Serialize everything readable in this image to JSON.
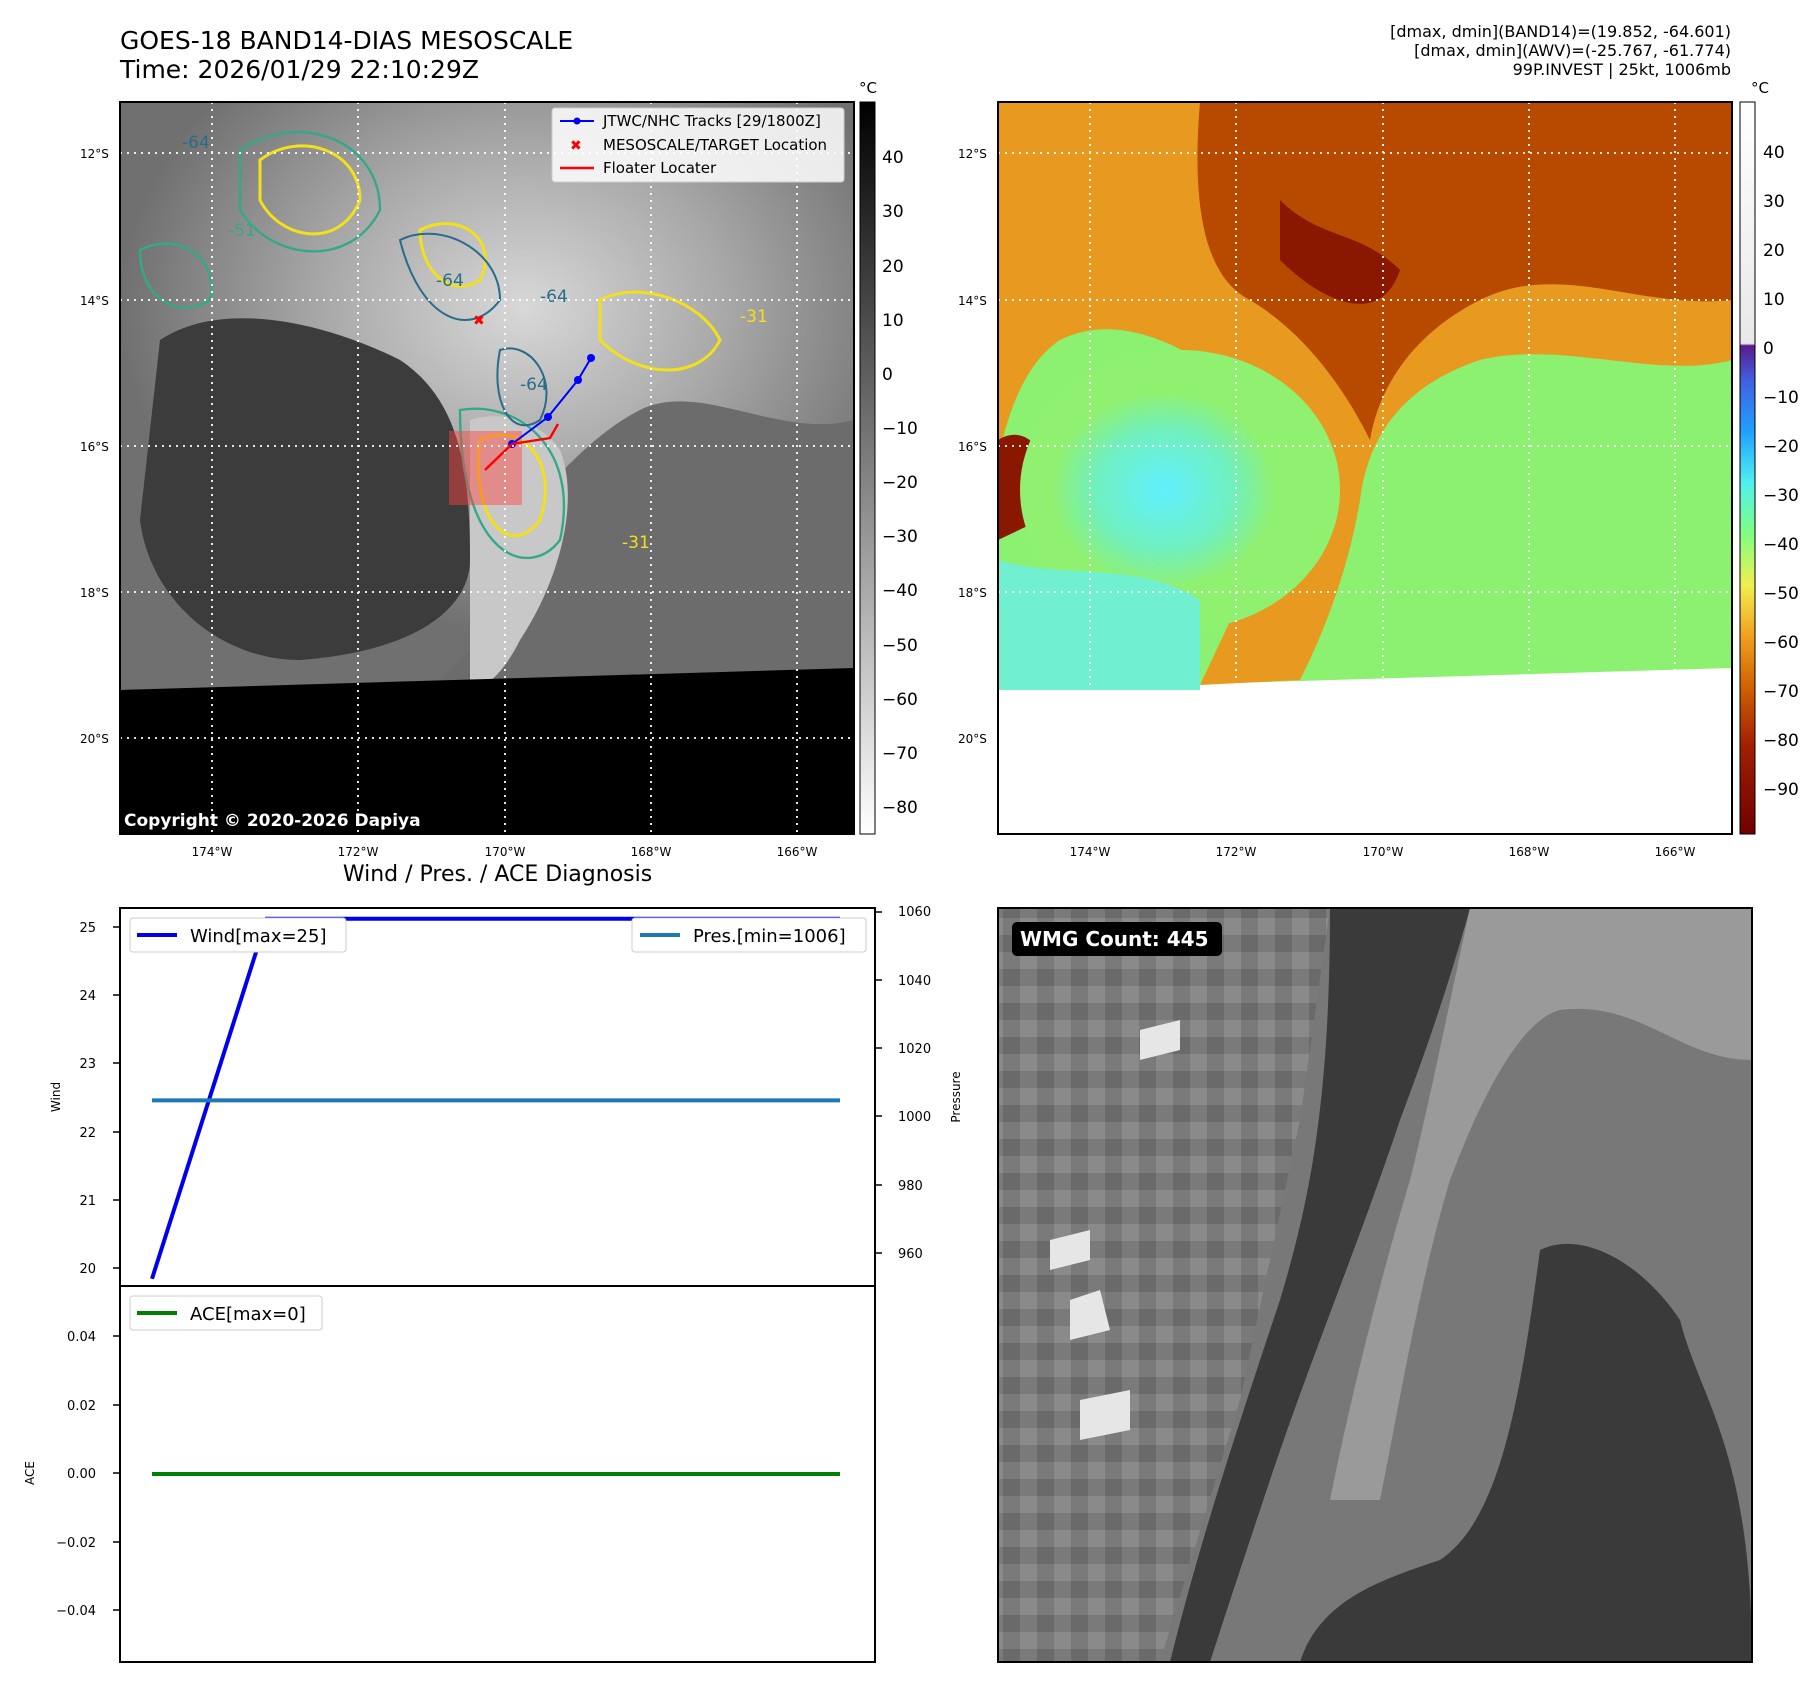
{
  "header": {
    "title_line1": "GOES-18 BAND14-DIAS MESOSCALE",
    "title_line2": "Time: 2026/01/29 22:10:29Z",
    "info_line1": "[dmax, dmin](BAND14)=(19.852, -64.601)",
    "info_line2": "[dmax, dmin](AWV)=(-25.767, -61.774)",
    "info_line3": "99P.INVEST | 25kt, 1006mb"
  },
  "ir_panel": {
    "colorbar_unit": "°C",
    "colorbar_ticks": [
      "40",
      "30",
      "20",
      "10",
      "0",
      "−10",
      "−20",
      "−30",
      "−40",
      "−50",
      "−60",
      "−70",
      "−80"
    ],
    "lat_labels": [
      "12°S",
      "14°S",
      "16°S",
      "18°S",
      "20°S"
    ],
    "lon_labels": [
      "174°W",
      "172°W",
      "170°W",
      "168°W",
      "166°W"
    ],
    "contour_labels": [
      "-64",
      "-64",
      "-64",
      "-64",
      "-51",
      "-31",
      "-31"
    ],
    "legend": {
      "tracks": "JTWC/NHC Tracks [29/1800Z]",
      "target": "MESOSCALE/TARGET Location",
      "floater": "Floater Locater"
    },
    "copyright": "Copyright © 2020-2026 Dapiya"
  },
  "awv_panel": {
    "colorbar_unit": "°C",
    "colorbar_ticks": [
      "40",
      "30",
      "20",
      "10",
      "0",
      "−10",
      "−20",
      "−30",
      "−40",
      "−50",
      "−60",
      "−70",
      "−80",
      "−90"
    ],
    "lat_labels": [
      "12°S",
      "14°S",
      "16°S",
      "18°S",
      "20°S"
    ],
    "lon_labels": [
      "174°W",
      "172°W",
      "170°W",
      "168°W",
      "166°W"
    ]
  },
  "diagnosis": {
    "title": "Wind / Pres. / ACE Diagnosis",
    "wind_ylabel": "Wind",
    "pres_ylabel": "Pressure",
    "ace_ylabel": "ACE",
    "wind_legend": "Wind[max=25]",
    "pres_legend": "Pres.[min=1006]",
    "ace_legend": "ACE[max=0]",
    "wind_ticks": [
      "25",
      "24",
      "23",
      "22",
      "21",
      "20"
    ],
    "pres_ticks": [
      "1060",
      "1040",
      "1020",
      "1000",
      "980",
      "960"
    ],
    "ace_ticks": [
      "0.04",
      "0.02",
      "0.00",
      "−0.02",
      "−0.04"
    ]
  },
  "wmg_panel": {
    "count_label": "WMG Count: 445"
  },
  "colors": {
    "wind": "#0000ee",
    "pressure": "#1f77b4",
    "ace": "#008000",
    "track": "#0000ff",
    "floater": "#ff0000"
  },
  "chart_data": [
    {
      "type": "line",
      "x": [
        0,
        1,
        2,
        3,
        4,
        5,
        6
      ],
      "series": [
        {
          "name": "Wind[max=25]",
          "values": [
            20,
            25,
            25,
            25,
            25,
            25,
            25
          ],
          "axis": "left"
        },
        {
          "name": "Pres.[min=1006]",
          "values": [
            1006,
            1006,
            1006,
            1006,
            1006,
            1006,
            1006
          ],
          "axis": "right"
        }
      ],
      "title": "Wind / Pres. / ACE Diagnosis",
      "ylabel": "Wind",
      "y2label": "Pressure",
      "ylim": [
        19.9,
        25.15
      ],
      "y2lim": [
        952,
        1062
      ]
    },
    {
      "type": "line",
      "x": [
        0,
        1,
        2,
        3,
        4,
        5,
        6
      ],
      "series": [
        {
          "name": "ACE[max=0]",
          "values": [
            0,
            0,
            0,
            0,
            0,
            0,
            0
          ]
        }
      ],
      "ylabel": "ACE",
      "ylim": [
        -0.055,
        0.055
      ]
    }
  ]
}
